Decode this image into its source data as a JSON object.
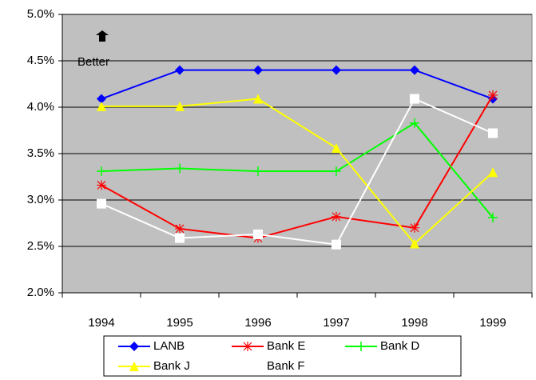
{
  "chart_data": {
    "type": "line",
    "annotation": "Better",
    "categories": [
      "1994",
      "1995",
      "1996",
      "1997",
      "1998",
      "1999"
    ],
    "series": [
      {
        "name": "LANB",
        "color": "#0000ff",
        "marker": "diamond",
        "values": [
          4.09,
          4.4,
          4.4,
          4.4,
          4.4,
          4.09
        ]
      },
      {
        "name": "Bank E",
        "color": "#ff0000",
        "marker": "asterisk",
        "values": [
          3.16,
          2.69,
          2.59,
          2.82,
          2.7,
          4.13
        ]
      },
      {
        "name": "Bank D",
        "color": "#00ff00",
        "marker": "plus",
        "values": [
          3.31,
          3.34,
          3.31,
          3.31,
          3.83,
          2.81
        ]
      },
      {
        "name": "Bank J",
        "color": "#ffff00",
        "marker": "triangle",
        "values": [
          4.01,
          4.01,
          4.09,
          3.56,
          2.53,
          3.3
        ]
      },
      {
        "name": "Bank F",
        "color": "#ffffff",
        "marker": "square",
        "values": [
          2.96,
          2.59,
          2.63,
          2.52,
          4.09,
          3.72
        ]
      }
    ],
    "ylim": [
      2.0,
      5.0
    ],
    "yticks": [
      {
        "value": 2.0,
        "label": "2.0%"
      },
      {
        "value": 2.5,
        "label": "2.5%"
      },
      {
        "value": 3.0,
        "label": "3.0%"
      },
      {
        "value": 3.5,
        "label": "3.5%"
      },
      {
        "value": 4.0,
        "label": "4.0%"
      },
      {
        "value": 4.5,
        "label": "4.5%"
      },
      {
        "value": 5.0,
        "label": "5.0%"
      }
    ],
    "grid": true,
    "legend": "bottom"
  }
}
